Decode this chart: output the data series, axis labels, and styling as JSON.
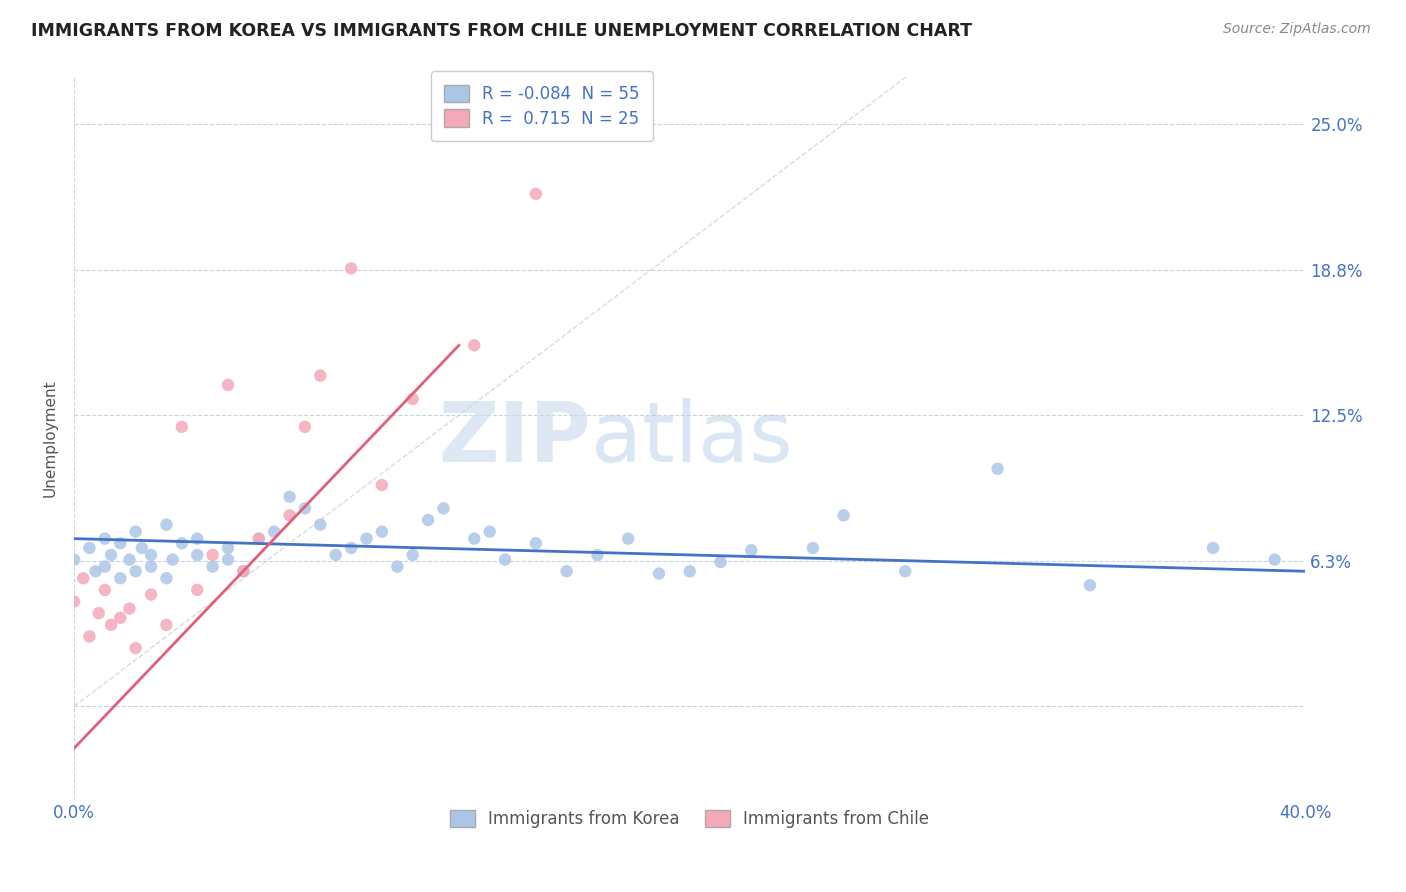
{
  "title": "IMMIGRANTS FROM KOREA VS IMMIGRANTS FROM CHILE UNEMPLOYMENT CORRELATION CHART",
  "source": "Source: ZipAtlas.com",
  "ylabel": "Unemployment",
  "xlim": [
    0.0,
    0.4
  ],
  "ylim": [
    -0.04,
    0.27
  ],
  "yticks": [
    0.0,
    0.0625,
    0.125,
    0.1875,
    0.25
  ],
  "ytick_labels": [
    "",
    "6.3%",
    "12.5%",
    "18.8%",
    "25.0%"
  ],
  "xticks": [
    0.0,
    0.4
  ],
  "xtick_labels": [
    "0.0%",
    "40.0%"
  ],
  "korea_R": -0.084,
  "korea_N": 55,
  "chile_R": 0.715,
  "chile_N": 25,
  "korea_color": "#adc6e8",
  "chile_color": "#f4a8b8",
  "korea_line_color": "#4472c4",
  "chile_line_color": "#e0607a",
  "watermark_zip": "ZIP",
  "watermark_atlas": "atlas",
  "legend_entries": [
    "Immigrants from Korea",
    "Immigrants from Chile"
  ],
  "background_color": "#ffffff",
  "grid_color": "#c8d4e4",
  "title_color": "#222222",
  "axis_label_color": "#4472c4",
  "korea_scatter_x": [
    0.0,
    0.005,
    0.007,
    0.01,
    0.01,
    0.012,
    0.015,
    0.015,
    0.018,
    0.02,
    0.02,
    0.022,
    0.025,
    0.025,
    0.03,
    0.03,
    0.032,
    0.035,
    0.04,
    0.04,
    0.045,
    0.05,
    0.05,
    0.055,
    0.06,
    0.065,
    0.07,
    0.075,
    0.08,
    0.085,
    0.09,
    0.095,
    0.1,
    0.105,
    0.11,
    0.115,
    0.12,
    0.13,
    0.135,
    0.14,
    0.15,
    0.16,
    0.17,
    0.18,
    0.19,
    0.2,
    0.21,
    0.22,
    0.24,
    0.25,
    0.27,
    0.3,
    0.33,
    0.37,
    0.39
  ],
  "korea_scatter_y": [
    0.063,
    0.068,
    0.058,
    0.072,
    0.06,
    0.065,
    0.055,
    0.07,
    0.063,
    0.058,
    0.075,
    0.068,
    0.06,
    0.065,
    0.055,
    0.078,
    0.063,
    0.07,
    0.065,
    0.072,
    0.06,
    0.063,
    0.068,
    0.058,
    0.072,
    0.075,
    0.09,
    0.085,
    0.078,
    0.065,
    0.068,
    0.072,
    0.075,
    0.06,
    0.065,
    0.08,
    0.085,
    0.072,
    0.075,
    0.063,
    0.07,
    0.058,
    0.065,
    0.072,
    0.057,
    0.058,
    0.062,
    0.067,
    0.068,
    0.082,
    0.058,
    0.102,
    0.052,
    0.068,
    0.063
  ],
  "chile_scatter_x": [
    0.0,
    0.003,
    0.005,
    0.008,
    0.01,
    0.012,
    0.015,
    0.018,
    0.02,
    0.025,
    0.03,
    0.035,
    0.04,
    0.045,
    0.05,
    0.055,
    0.06,
    0.07,
    0.075,
    0.08,
    0.09,
    0.1,
    0.11,
    0.13,
    0.15
  ],
  "chile_scatter_y": [
    0.045,
    0.055,
    0.03,
    0.04,
    0.05,
    0.035,
    0.038,
    0.042,
    0.025,
    0.048,
    0.035,
    0.12,
    0.05,
    0.065,
    0.138,
    0.058,
    0.072,
    0.082,
    0.12,
    0.142,
    0.188,
    0.095,
    0.132,
    0.155,
    0.22
  ],
  "chile_line_x0": 0.0,
  "chile_line_x1": 0.125,
  "chile_line_y0": -0.018,
  "chile_line_y1": 0.155,
  "korea_line_x0": 0.0,
  "korea_line_x1": 0.4,
  "korea_line_y0": 0.072,
  "korea_line_y1": 0.058
}
